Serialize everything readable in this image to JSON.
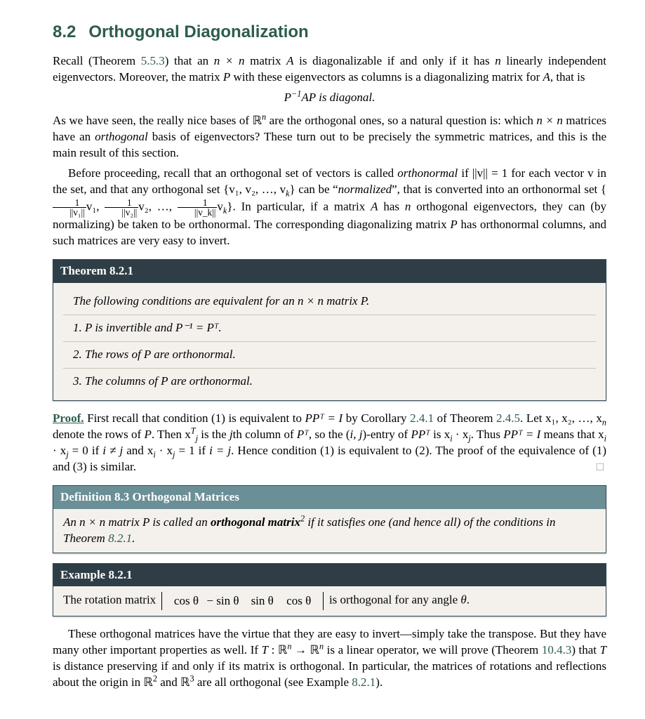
{
  "title": {
    "num": "8.2",
    "text": "Orthogonal Diagonalization"
  },
  "intro": {
    "p1a": "Recall (Theorem ",
    "ref1": "5.5.3",
    "p1b": ") that an ",
    "nxn": "n × n",
    "p1c": " matrix ",
    "A": "A",
    "p1d": " is diagonalizable if and only if it has ",
    "n": "n",
    "p1e": " linearly independent eigenvectors. Moreover, the matrix ",
    "P": "P",
    "p1f": " with these eigenvectors as columns is a diagonalizing matrix for ",
    "p1g": ", that is",
    "eq": "P⁻¹AP is diagonal."
  },
  "para2": {
    "a": "As we have seen, the really nice bases of ℝ",
    "b": " are the orthogonal ones, so a natural question is: which ",
    "c": " matrices have an ",
    "orth": "orthogonal",
    "d": " basis of eigenvectors? These turn out to be precisely the symmetric matrices, and this is the main result of this section."
  },
  "para3": {
    "a": "Before proceeding, recall that an orthogonal set of vectors is called ",
    "ortho": "orthonormal",
    "b": " if ||v|| = 1 for each vector v in the set, and that any orthogonal set {v₁, v₂, …, v",
    "k": "k",
    "c": "} can be “",
    "norm": "normalized",
    "d": "”, that is converted into an orthonormal set {",
    "frac1n": "1",
    "frac1d": "||v₁||",
    "v1": "v₁, ",
    "frac2n": "1",
    "frac2d": "||v₂||",
    "v2": "v₂, …, ",
    "frac3n": "1",
    "frac3d": "||v_k||",
    "vk": "v",
    "e": "}. In particular, if a matrix ",
    "A": "A",
    "f": " has ",
    "n": "n",
    "g": " orthogonal eigenvectors, they can (by normalizing) be taken to be orthonormal. The corresponding diagonalizing matrix ",
    "P": "P",
    "h": " has orthonormal columns, and such matrices are very easy to invert."
  },
  "thm": {
    "head": "Theorem 8.2.1",
    "lead": "The following conditions are equivalent for an n × n matrix P.",
    "i1": "1.  P is invertible and P⁻¹ = Pᵀ.",
    "i2": "2.  The rows of P are orthonormal.",
    "i3": "3.  The columns of P are orthonormal."
  },
  "proof": {
    "head": "Proof.",
    "a": " First recall that condition (1) is equivalent to ",
    "ppT": "PPᵀ = I",
    "b": " by Corollary ",
    "ref1": "2.4.1",
    "c": " of Theorem ",
    "ref2": "2.4.5",
    "d": ". Let x₁, x₂, …, x",
    "n": "n",
    "e": " denote the rows of ",
    "P": "P",
    "f": ". Then x",
    "jT": "ᵀⱼ",
    "g": " is the ",
    "j": " j",
    "h": "th column of ",
    "PT": "Pᵀ",
    "i": ", so the (",
    "ij": "i, j",
    "j2": ")-entry of ",
    "ppT2": "PPᵀ",
    "k": " is x",
    "ii": "i",
    "dot": " · x",
    "jj": "j",
    "l": ". Thus ",
    "ppTI": "PPᵀ = I",
    "m": " means that x",
    "n2": " · x",
    "o": " = 0 if ",
    "inej": "i ≠ j",
    "p": " and x",
    "q": " · x",
    "r": " = 1 if ",
    "ieqj": "i = j",
    "s": ". Hence condition (1) is equivalent to (2). The proof of the equivalence of (1) and (3) is similar.",
    "qed": "□"
  },
  "defn": {
    "head": "Definition 8.3 Orthogonal Matrices",
    "a": "An n × n matrix P is called an ",
    "b": "orthogonal matrix",
    "foot": "2",
    "c": " if it satisfies one (and hence all) of the conditions in Theorem ",
    "ref": "8.2.1",
    "d": "."
  },
  "ex": {
    "head": "Example 8.2.1",
    "a": "The rotation matrix ",
    "m11": "cos θ",
    "m12": "− sin θ",
    "m21": "sin θ",
    "m22": "cos θ",
    "b": " is orthogonal for any angle ",
    "theta": "θ",
    "c": "."
  },
  "closing": {
    "a": "These orthogonal matrices have the virtue that they are easy to invert—simply take the transpose. But they have many other important properties as well. If ",
    "T": "T",
    "b": " : ℝ",
    "n": "n",
    "c": " → ℝ",
    "d": " is a linear operator, we will prove (Theorem ",
    "ref": "10.4.3",
    "e": ") that ",
    "f": " is distance preserving if and only if its matrix is orthogonal. In particular, the matrices of rotations and reflections about the origin in ℝ",
    "two": "2",
    "g": " and ℝ",
    "three": "3",
    "h": " are all orthogonal (see Example ",
    "ref2": "8.2.1",
    "i": ")."
  }
}
